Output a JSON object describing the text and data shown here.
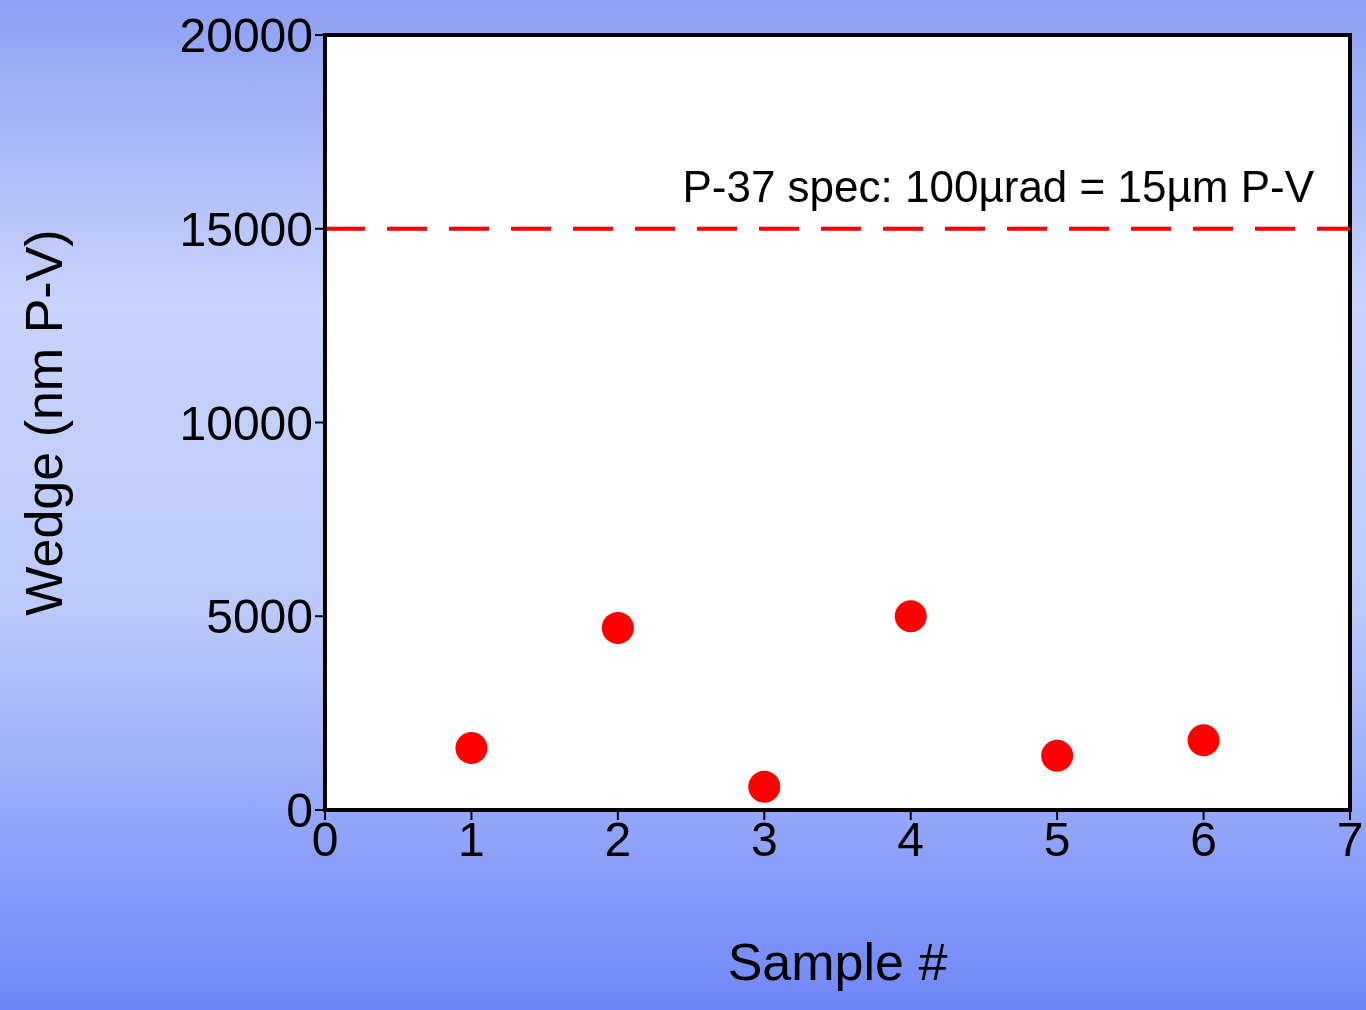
{
  "chart_data": {
    "type": "scatter",
    "xlabel": "Sample #",
    "ylabel": "Wedge (nm P-V)",
    "x": [
      1,
      2,
      3,
      4,
      5,
      6
    ],
    "values": [
      1600,
      4700,
      600,
      5000,
      1400,
      1800
    ],
    "color": "#ff0000",
    "marker": "circle",
    "xlim": [
      0,
      7
    ],
    "xticks": [
      0,
      1,
      2,
      3,
      4,
      5,
      6,
      7
    ],
    "ylim": [
      0,
      20000
    ],
    "yticks": [
      0,
      5000,
      10000,
      15000,
      20000
    ],
    "annotations": [
      "P-37 spec: 100µrad = 15µm P-V"
    ],
    "ref_lines": [
      {
        "axis": "y",
        "value": 15000,
        "color": "#ff0000",
        "line_style": "dashed"
      }
    ]
  }
}
